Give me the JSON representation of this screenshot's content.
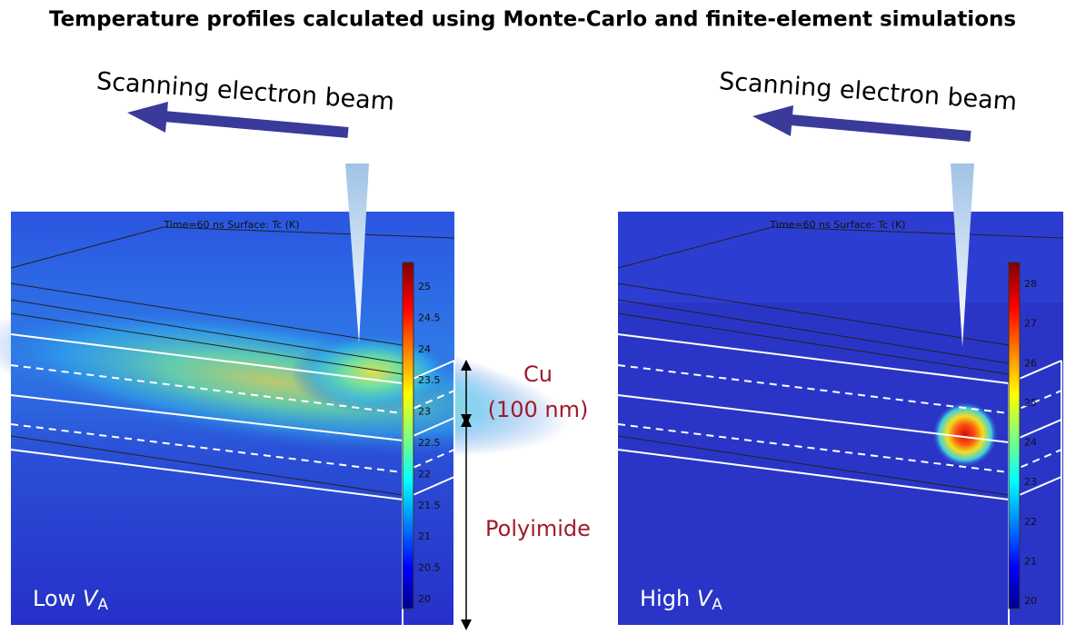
{
  "title": "Temperature profiles calculated using Monte-Carlo and finite-element simulations",
  "panels": [
    {
      "beam_label": "Scanning electron beam",
      "header": "Time=60 ns  Surface: Tc (K)",
      "colorbar_ticks": [
        25,
        24.5,
        24,
        23.5,
        23,
        22.5,
        22,
        21.5,
        21,
        20.5,
        20
      ],
      "label": {
        "prefix": "Low",
        "symbol": "V",
        "subscript": "A"
      }
    },
    {
      "beam_label": "Scanning electron beam",
      "header": "Time=60 ns  Surface: Tc (K)",
      "colorbar_ticks": [
        28,
        27,
        26,
        25,
        24,
        23,
        22,
        21,
        20
      ],
      "label": {
        "prefix": "High",
        "symbol": "V",
        "subscript": "A"
      }
    }
  ],
  "layers": {
    "cu": "Cu",
    "cu_thickness": "(100 nm)",
    "substrate": "Polyimide"
  }
}
